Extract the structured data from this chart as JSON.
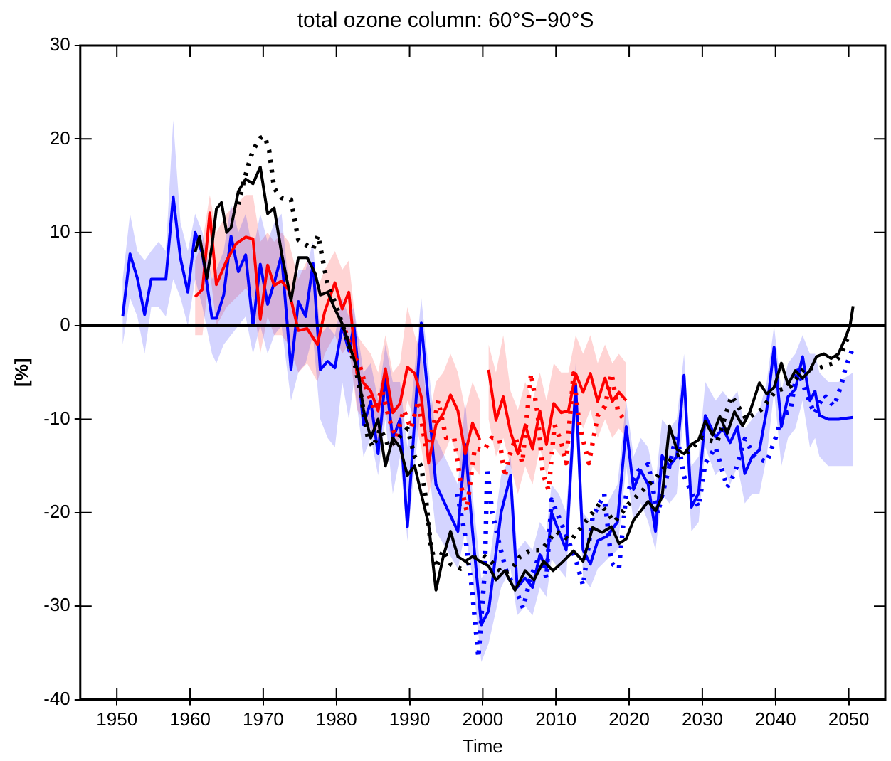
{
  "chart_data": {
    "type": "line",
    "title": "total ozone column: 60°S−90°S",
    "xlabel": "Time",
    "ylabel": "[%]",
    "xlim": [
      1945,
      2055
    ],
    "ylim": [
      -40,
      30
    ],
    "xticks": [
      1950,
      1960,
      1970,
      1980,
      1990,
      2000,
      2010,
      2020,
      2030,
      2040,
      2050
    ],
    "yticks": [
      -40,
      -30,
      -20,
      -10,
      0,
      10,
      20,
      30
    ],
    "grid": false,
    "legend": false,
    "marker": "none",
    "ref_lines": [
      {
        "axis": "y",
        "value": 0,
        "color": "#000000"
      }
    ],
    "series": [
      {
        "color": "#000000",
        "line_style": "solid",
        "x": [
          1960.7,
          1961.3,
          1962.3,
          1963,
          1963.6,
          1964.3,
          1965,
          1965.6,
          1966.6,
          1967.6,
          1968.6,
          1969.6,
          1970.6,
          1971.5,
          1972.5,
          1973.8,
          1974.8,
          1976,
          1977.1,
          1977.8,
          1978.8,
          1979.8,
          1980.8,
          1982,
          1983,
          1983.7,
          1984.7,
          1985.7,
          1986.7,
          1987.7,
          1988.7,
          1989.7,
          1990.7,
          1991.6,
          1992.6,
          1993.6,
          1994.6,
          1995.6,
          1996.6,
          1997.6,
          1998.6,
          1999.6,
          2000.8,
          2001.8,
          2003,
          2004.4,
          2005.8,
          2007,
          2008.3,
          2009.6,
          2011,
          2012.4,
          2013.7,
          2015,
          2016.3,
          2017.6,
          2018.6,
          2019.6,
          2020.6,
          2021.6,
          2022.6,
          2023.6,
          2024.5,
          2025.5,
          2026.5,
          2027.5,
          2028.5,
          2029.5,
          2030.4,
          2031.4,
          2032.4,
          2033.4,
          2034.4,
          2035.5,
          2036.5,
          2037.8,
          2038.8,
          2039.8,
          2040.8,
          2041.7,
          2042.7,
          2043.7,
          2044.7,
          2045.6,
          2046.6,
          2047.6,
          2048.6,
          2049.6,
          2050.2,
          2050.6
        ],
        "values": [
          7.9,
          9.6,
          5.1,
          8.6,
          12.5,
          13.2,
          10,
          10.5,
          14.4,
          15.7,
          15.2,
          17,
          12,
          12.6,
          7.8,
          2.7,
          7.3,
          7.3,
          5.6,
          3.3,
          3.6,
          1.8,
          0.2,
          -2.6,
          -5,
          -9,
          -12,
          -10,
          -15,
          -12,
          -13,
          -16,
          -15,
          -18,
          -21.2,
          -28.3,
          -24.7,
          -22,
          -24.7,
          -25.2,
          -24.7,
          -25.2,
          -25.7,
          -27.2,
          -26.2,
          -28.3,
          -26.2,
          -27.2,
          -25.2,
          -26.2,
          -25.2,
          -24.1,
          -25.2,
          -21.6,
          -22.1,
          -21.5,
          -23.3,
          -22.8,
          -20.8,
          -19.8,
          -18.8,
          -19.8,
          -18.3,
          -10.7,
          -13.2,
          -13.7,
          -12.7,
          -12.2,
          -10.2,
          -11.7,
          -9.7,
          -11.5,
          -9.2,
          -10.7,
          -9.2,
          -6.1,
          -7.3,
          -6.6,
          -4,
          -6.3,
          -4.8,
          -5.6,
          -4.8,
          -3.3,
          -3,
          -3.5,
          -3,
          -1.2,
          0.1,
          2.1
        ]
      },
      {
        "color": "#000000",
        "line_style": "dotted",
        "x": [
          1966.6,
          1967.3,
          1968,
          1968.6,
          1969.6,
          1970.2,
          1970.8,
          1971.5,
          1972.5,
          1973.8,
          1974.8,
          1975.8,
          1976.8,
          1977.5,
          1978.1,
          1978.8,
          1979.8,
          1980.8,
          1981.7,
          1982.6,
          1983.4,
          1984.3,
          1985,
          1986,
          1987.2,
          1988.5,
          1989.7,
          1990.7,
          1991.6,
          1992.3,
          1992.9,
          1993.6,
          1994.6,
          1995.6,
          1997,
          1998.5,
          2000,
          2001.5,
          2002.7,
          2003.8,
          2005.1,
          2006.6,
          2008,
          2010,
          2012,
          2014,
          2016,
          2018,
          2020,
          2022,
          2024,
          2026,
          2028,
          2030,
          2032,
          2034,
          2036,
          2038,
          2040,
          2042,
          2044,
          2046,
          2048,
          2049,
          2050
        ],
        "values": [
          13,
          15.3,
          17.3,
          18.8,
          20.1,
          20.3,
          18.8,
          14.7,
          13.7,
          13.5,
          9.2,
          8.7,
          8.2,
          9.7,
          7.2,
          4.4,
          2.5,
          0.2,
          -2.1,
          -4.4,
          -7.6,
          -12,
          -13,
          -11,
          -13,
          -12,
          -11,
          -14,
          -15,
          -19,
          -23.5,
          -25.9,
          -24,
          -25.5,
          -26,
          -25,
          -24.5,
          -25.5,
          -26.5,
          -26.2,
          -24.7,
          -24,
          -24,
          -22,
          -23,
          -21,
          -19,
          -21,
          -19,
          -17.5,
          -16,
          -14,
          -13.5,
          -12,
          -12.5,
          -7.5,
          -10,
          -9,
          -7,
          -6.5,
          -4.5,
          -4.5,
          -4,
          -3,
          -1
        ]
      },
      {
        "color": "#ff0000",
        "line_style": "solid",
        "x": [
          1960.7,
          1961.7,
          1962.7,
          1963.6,
          1965,
          1966.3,
          1967.6,
          1968.6,
          1969.6,
          1970.6,
          1971.5,
          1972.5,
          1973.5,
          1974.8,
          1976,
          1977.4,
          1978.4,
          1979.8,
          1980.8,
          1981.7,
          1982.8,
          1983.7,
          1984.7,
          1985.7,
          1986.7,
          1987.7,
          1988.7,
          1989.7,
          1990.7,
          1991.6,
          1992.6,
          1993.6,
          1994.6,
          1995.6,
          1996.6,
          1997.6,
          1998.6,
          1999.6,
          2000.2,
          2000.8,
          2001.8,
          2002.8,
          2003.8,
          2004.8,
          2005.8,
          2006.8,
          2007.8,
          2008.7,
          2009.7,
          2010.7,
          2011.7,
          2012.7,
          2013.7,
          2014.7,
          2015.7,
          2016.7,
          2017.7,
          2018.6,
          2019.6
        ],
        "values": [
          3.1,
          3.9,
          12.1,
          4.4,
          7,
          8.8,
          9.5,
          9.3,
          0.7,
          6.5,
          4.3,
          4.8,
          3.8,
          -0.5,
          -0.3,
          -2,
          1.5,
          4.6,
          1.8,
          3.6,
          -5.1,
          -6.1,
          -7,
          -9.1,
          -4.6,
          -9.3,
          -8.3,
          -4.4,
          -5.1,
          -7.6,
          -14.7,
          -10.6,
          -9.4,
          -7.4,
          -9.1,
          -13.7,
          -10.4,
          -12.2,
          null,
          -4.7,
          -10.1,
          -7.6,
          -11.4,
          -13.7,
          -10.6,
          -13.2,
          -9.1,
          -12.7,
          -8.3,
          -9.3,
          -9.1,
          -5.1,
          -7.1,
          -5.1,
          -8.1,
          -5.6,
          -8.1,
          -7.1,
          -8
        ],
        "lower": [
          -1,
          -1,
          6,
          0,
          2,
          3,
          4,
          3,
          -3,
          1,
          -1,
          -1,
          -2,
          -5,
          -4,
          -6,
          -3,
          -1,
          -3,
          -2,
          -9,
          -10,
          -11,
          -13,
          -9,
          -13,
          -12,
          -8,
          -10,
          -13,
          -18,
          -15,
          -14,
          -12,
          -14,
          -18,
          -15,
          -16,
          null,
          -10,
          -14,
          -12,
          -15,
          -18,
          -15,
          -17,
          -13,
          -16,
          -13,
          -14,
          -13,
          -9,
          -11,
          -9,
          -12,
          -10,
          -12,
          -11,
          -12
        ],
        "upper": [
          7,
          9,
          14,
          10,
          12,
          13,
          14,
          14,
          9,
          10,
          9,
          10,
          9,
          5,
          7,
          4,
          6,
          8,
          6,
          7,
          -1,
          -2,
          -3,
          -5,
          -1,
          -5,
          -4,
          2,
          -1,
          -3,
          -10,
          -6,
          -5,
          -3,
          -5,
          -9,
          -6,
          -8,
          null,
          -2,
          -5,
          -1,
          -7,
          -9,
          -6,
          -8,
          -5,
          -8,
          -4,
          -5,
          -5,
          -1,
          -3,
          -1,
          -4,
          -2,
          -4,
          -3,
          -4
        ]
      },
      {
        "color": "#ff0000",
        "line_style": "dotted",
        "x": [
          1981.2,
          1982.2,
          1983.2,
          1984.2,
          1985.2,
          1986.2,
          1987.2,
          1988.2,
          1989.2,
          1990.2,
          1991.2,
          1992.2,
          1993.2,
          1993.9,
          1995,
          1996.1,
          1997,
          1997.8,
          1998.9,
          2000.2,
          2001.2,
          2002.3,
          2003,
          2003.6,
          2004.5,
          2005.4,
          2006.6,
          2007.5,
          2008.2,
          2009,
          2009.8,
          2010.7,
          2011.4,
          2012.4,
          2013.2,
          2014.5,
          2015.7,
          2016.7,
          2017.6,
          2018.5,
          2019.3
        ],
        "values": [
          -0.5,
          -3,
          -4.3,
          -7,
          -9,
          -6.8,
          -10,
          -12,
          -9,
          -11,
          -8,
          -13,
          -11,
          -8,
          -12,
          -12,
          -17,
          -19.8,
          -13.1,
          -13.3,
          -12,
          -12.2,
          -16.2,
          -14,
          -12,
          -14.7,
          -5.1,
          -9.4,
          -15.8,
          -17.6,
          -10.6,
          -12.4,
          -14.7,
          -5.1,
          -10.6,
          -14.7,
          -9.6,
          -8.6,
          -5.1,
          -9.3,
          -10
        ]
      },
      {
        "color": "#0000ff",
        "line_style": "solid",
        "x": [
          1950.8,
          1951.8,
          1952.8,
          1953.8,
          1954.7,
          1955.7,
          1956.7,
          1957.7,
          1958.7,
          1959.7,
          1960.7,
          1961.7,
          1963,
          1963.6,
          1964.6,
          1965.6,
          1966.6,
          1967.6,
          1968.6,
          1969.6,
          1970.6,
          1971.5,
          1972.5,
          1973.8,
          1974.8,
          1975.8,
          1976.8,
          1977.8,
          1978.8,
          1979.8,
          1980.8,
          1981.7,
          1982.4,
          1983.7,
          1984.7,
          1985.7,
          1986.7,
          1987.7,
          1988.7,
          1989.7,
          1991.6,
          1993.6,
          1996.6,
          1997.6,
          1998.6,
          1999.8,
          2000.8,
          2002.5,
          2003.8,
          2004.7,
          2005.8,
          2006.8,
          2007.8,
          2008.7,
          2009.4,
          2010.4,
          2011.4,
          2012.7,
          2013.7,
          2014.7,
          2015.7,
          2017,
          2018.4,
          2019.6,
          2020.6,
          2021.6,
          2022.6,
          2023.6,
          2024.5,
          2025.5,
          2026.5,
          2027.5,
          2028.5,
          2029.5,
          2030.4,
          2031.8,
          2032.8,
          2033.8,
          2034.8,
          2035.8,
          2036.8,
          2037.8,
          2038.8,
          2039.8,
          2040.8,
          2041.7,
          2042.7,
          2043.7,
          2044.7,
          2045.4,
          2046,
          2047.2,
          2048.6,
          2050.6
        ],
        "values": [
          1,
          7.7,
          5.1,
          1.2,
          5,
          5,
          5,
          13.8,
          7.2,
          3.6,
          10,
          7.7,
          0.8,
          0.8,
          3.3,
          9.6,
          5.8,
          7.6,
          0,
          6.6,
          2.3,
          4.6,
          7.6,
          -4.7,
          2.6,
          1,
          6.7,
          -4.7,
          -3.8,
          -4.5,
          0,
          -2.7,
          0,
          -10.6,
          -8.1,
          -13.7,
          -5.5,
          -12.1,
          -10,
          -21.5,
          0.3,
          -17,
          -22,
          -12.7,
          -22,
          -32,
          -30.5,
          -20,
          -16,
          -28,
          -27,
          -28,
          -24.5,
          -26,
          -20,
          -22,
          -24,
          -6.3,
          -24,
          -25.5,
          -23,
          -22.5,
          -21,
          -10.8,
          -17.5,
          -15.5,
          -17,
          -22,
          -13.9,
          -15,
          -14,
          -5.3,
          -19.4,
          -17.9,
          -9.6,
          -11.9,
          -11,
          -12.5,
          -10.8,
          -15.8,
          -14,
          -13.3,
          -9,
          -2.3,
          -10.8,
          -7.6,
          -6.8,
          -3.3,
          -8,
          -7,
          -9.6,
          -10,
          -10,
          -9.8
        ],
        "lower": [
          -2,
          3,
          1,
          -3,
          2,
          2,
          1,
          5,
          3,
          0,
          5,
          2,
          -3,
          -4,
          -2,
          -1,
          0,
          1,
          -3,
          0,
          -3,
          -1,
          0,
          -8,
          -5,
          -4,
          -1,
          -10,
          -12,
          -13,
          -6,
          -10,
          -6,
          -14,
          -12,
          -16,
          -10,
          -18,
          -14,
          -23,
          -8,
          -22,
          -26,
          -22,
          -27,
          -36,
          -34,
          -28,
          -26,
          -31,
          -30,
          -31,
          -28,
          -29,
          -25,
          -26,
          -27,
          -10,
          -27,
          -28,
          -26,
          -25,
          -24,
          -15,
          -21,
          -19,
          -21,
          -24,
          -18,
          -19,
          -18,
          -9,
          -22,
          -21,
          -13,
          -16,
          -15,
          -17,
          -15,
          -19,
          -18,
          -18,
          -14,
          -7,
          -15,
          -12,
          -11,
          -8,
          -13,
          -12,
          -14,
          -15,
          -15,
          -15
        ],
        "upper": [
          5,
          12,
          8,
          7,
          8,
          9,
          8,
          22,
          11,
          8,
          12,
          10,
          5,
          6,
          8,
          13,
          10,
          12,
          8,
          12,
          9,
          11,
          12,
          2,
          6,
          6,
          9,
          -1,
          0,
          -1,
          3,
          1,
          2,
          -5,
          -4,
          -8,
          -2,
          -6,
          -6,
          -13,
          3,
          -12,
          -17,
          -8,
          -18,
          -27,
          -26,
          -16,
          -14,
          -24,
          -23,
          -24,
          -21,
          -22,
          -17,
          -18,
          -20,
          -4,
          -20,
          -21,
          -19,
          -19,
          -17,
          -8,
          -14,
          -12,
          -13,
          -17,
          -10,
          -11,
          -10,
          -3,
          -15,
          -14,
          -6,
          -8,
          -7,
          -8,
          -7,
          -11,
          -10,
          -9,
          -6,
          0,
          -7,
          -4,
          -3,
          -1,
          -3,
          -3,
          -5,
          -6,
          -6,
          -5
        ]
      },
      {
        "color": "#0000ff",
        "line_style": "dotted",
        "x": [
          1996.5,
          1997.5,
          1998.5,
          1999.4,
          2000.3,
          2000.6,
          2001.3,
          2002.3,
          2003.3,
          2004.4,
          2005.5,
          2006.6,
          2007.8,
          2008.7,
          2009.4,
          2010.4,
          2011.7,
          2012.7,
          2013.7,
          2015,
          2016.6,
          2017.6,
          2018.6,
          2019.6,
          2021.3,
          2022.6,
          2023.9,
          2025.5,
          2026.5,
          2027.5,
          2028.5,
          2029.5,
          2030.4,
          2031.8,
          2033.4,
          2034.4,
          2035.8,
          2037.2,
          2038.8,
          2040,
          2041,
          2042,
          2043,
          2044,
          2045.3,
          2046.6,
          2048,
          2049,
          2049.6,
          2050.6
        ],
        "values": [
          -18,
          -22,
          -28,
          -35.5,
          -26,
          -15.2,
          -20,
          -23.5,
          -26.5,
          -28,
          -30.2,
          -26.8,
          -24.5,
          -27,
          -18.6,
          -20.5,
          -23,
          -25,
          -27.8,
          -20.5,
          -18,
          -25.4,
          -26,
          -18,
          -15.5,
          -14.8,
          -20.1,
          -15,
          -11.5,
          -16.1,
          -17.8,
          -19.4,
          -14.7,
          -13,
          -17.3,
          -15.8,
          -12.1,
          -14,
          -14.6,
          -12,
          -9.4,
          -9.2,
          -4.5,
          -6.8,
          -9.4,
          -7.4,
          -8.6,
          -6.3,
          -4.4,
          -2.3
        ]
      }
    ]
  }
}
